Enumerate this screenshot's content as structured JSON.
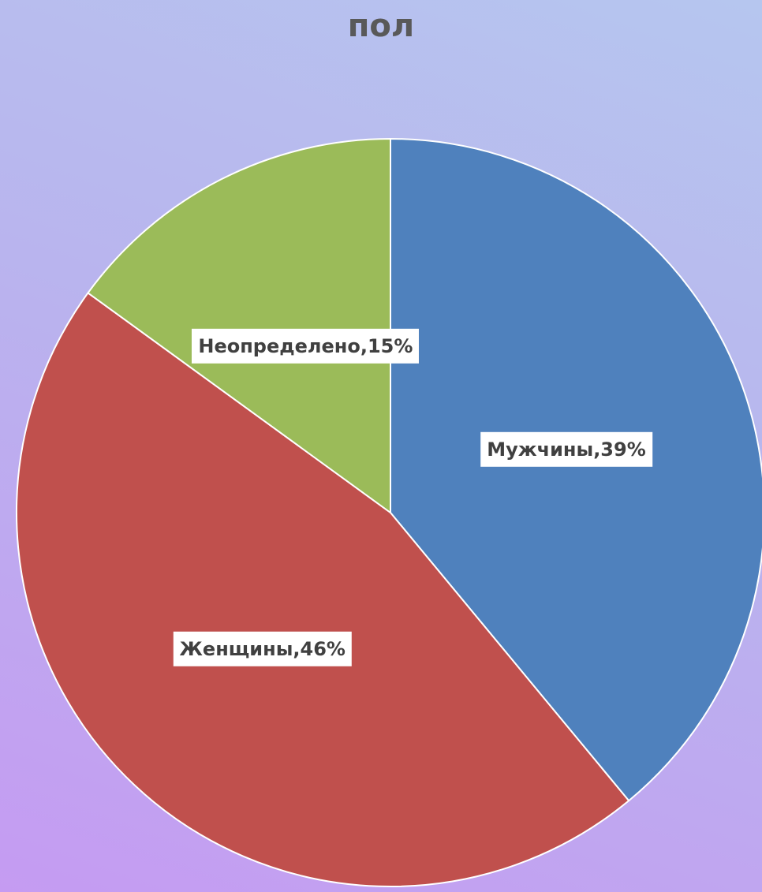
{
  "chart_data": {
    "type": "pie",
    "title": "пол",
    "values": [
      39,
      46,
      15
    ],
    "value_labels": [
      "Мужчины,39%",
      "Женщины,46%",
      "Неопределено,15%"
    ],
    "colors": [
      "#4f81bd",
      "#c0504d",
      "#9bbb59"
    ]
  }
}
